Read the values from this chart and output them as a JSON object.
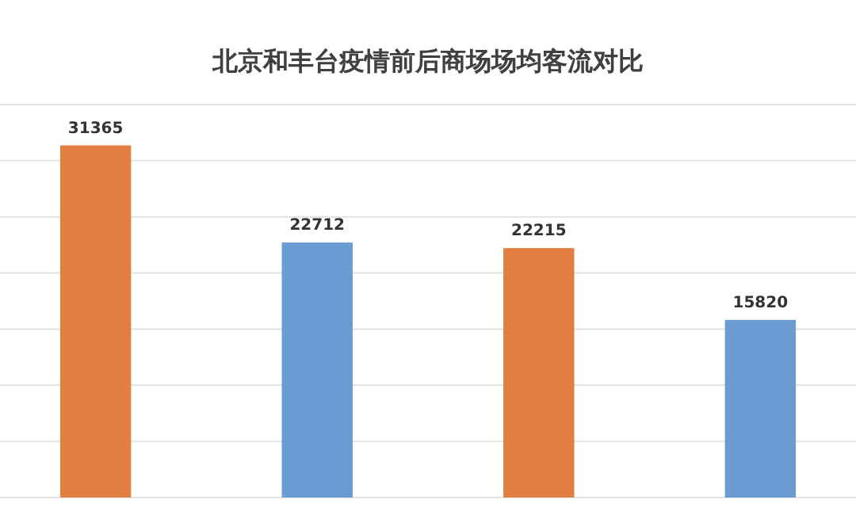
{
  "chart_data": {
    "type": "bar",
    "title": "北京和丰台疫情前后商场场均客流对比",
    "categories": [
      null,
      null,
      null,
      null
    ],
    "values": [
      31365,
      22712,
      22215,
      15820
    ],
    "colors": [
      "#e07f3f",
      "#6a9bd2",
      "#e07f3f",
      "#6a9bd2"
    ],
    "ylim": [
      0,
      35000
    ],
    "yticks": [
      {
        "value": 0,
        "label": null
      },
      {
        "value": 5000,
        "label": null
      },
      {
        "value": 10000,
        "label": null
      },
      {
        "value": 15000,
        "label": null
      },
      {
        "value": 20000,
        "label": null
      },
      {
        "value": 25000,
        "label": null
      },
      {
        "value": 30000,
        "label": null
      },
      {
        "value": 35000,
        "label": null
      }
    ],
    "grid": "y",
    "tick_labels": false,
    "data_labels": true
  }
}
